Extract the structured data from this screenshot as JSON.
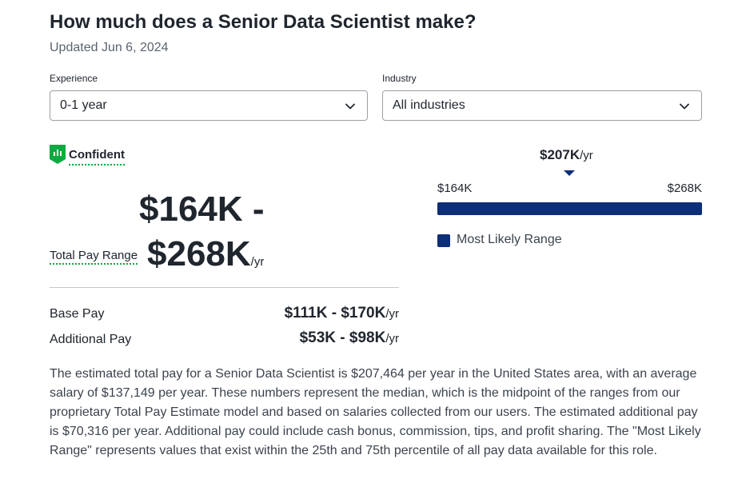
{
  "header": {
    "title": "How much does a Senior Data Scientist make?",
    "updated": "Updated Jun 6, 2024"
  },
  "filters": {
    "experience": {
      "label": "Experience",
      "value": "0-1 year"
    },
    "industry": {
      "label": "Industry",
      "value": "All industries"
    }
  },
  "confidence": {
    "label": "Confident",
    "icon": "bar-chart-badge-icon",
    "color": "#0caa41"
  },
  "total_pay": {
    "label": "Total Pay Range",
    "range_line1": "$164K -",
    "range_line2": "$268K",
    "unit": "/yr"
  },
  "breakdown": [
    {
      "label": "Base Pay",
      "value": "$111K - $170K",
      "unit": "/yr"
    },
    {
      "label": "Additional Pay",
      "value": "$53K - $98K",
      "unit": "/yr"
    }
  ],
  "range_bar": {
    "median": "$207K",
    "median_unit": "/yr",
    "low": "$164K",
    "high": "$268K",
    "legend": "Most Likely Range",
    "color": "#0d2f77"
  },
  "description": "The estimated total pay for a Senior Data Scientist is $207,464 per year in the United States area, with an average salary of $137,149 per year. These numbers represent the median, which is the midpoint of the ranges from our proprietary Total Pay Estimate model and based on salaries collected from our users. The estimated additional pay is $70,316 per year. Additional pay could include cash bonus, commission, tips, and profit sharing. The \"Most Likely Range\" represents values that exist within the 25th and 75th percentile of all pay data available for this role."
}
